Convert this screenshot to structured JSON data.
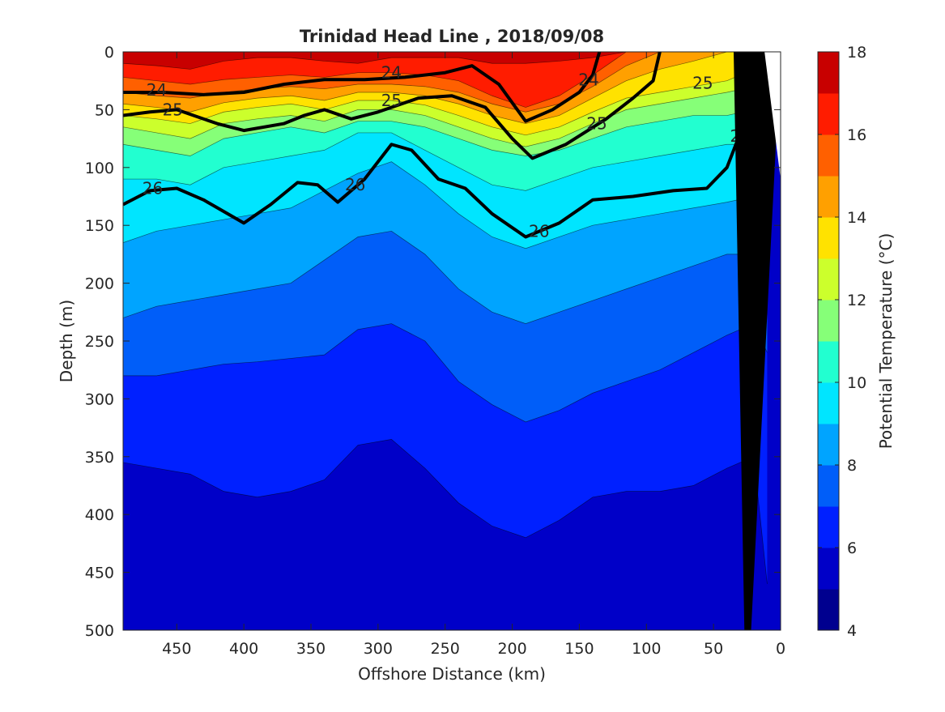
{
  "chart_data": {
    "type": "heatmap",
    "subtype": "filled-contour section",
    "title": "Trinidad Head Line , 2018/09/08",
    "xlabel": "Offshore Distance (km)",
    "ylabel": "Depth (m)",
    "colorbar_label": "Potential Temperature (°C)",
    "x_reversed": true,
    "y_reversed": true,
    "xlim": [
      0,
      490
    ],
    "ylim": [
      0,
      500
    ],
    "xticks": [
      450,
      400,
      350,
      300,
      250,
      200,
      150,
      100,
      50,
      0
    ],
    "yticks": [
      0,
      50,
      100,
      150,
      200,
      250,
      300,
      350,
      400,
      450,
      500
    ],
    "colorbar": {
      "min": 4,
      "max": 18,
      "step": 1,
      "ticks": [
        4,
        6,
        8,
        10,
        12,
        14,
        16,
        18
      ],
      "colors": [
        "#00008f",
        "#0000c8",
        "#0020ff",
        "#005ef9",
        "#00a4ff",
        "#00e5ff",
        "#22ffd0",
        "#86ff78",
        "#ccff2c",
        "#ffe200",
        "#ffa000",
        "#ff6000",
        "#ff1c00",
        "#c80000"
      ]
    },
    "temperature_layers": [
      {
        "t": 6,
        "depth": [
          355,
          360,
          365,
          380,
          385,
          380,
          370,
          340,
          335,
          360,
          390,
          410,
          420,
          405,
          385,
          380,
          380,
          375,
          360,
          350,
          460
        ]
      },
      {
        "t": 7,
        "depth": [
          280,
          280,
          275,
          270,
          268,
          265,
          262,
          240,
          235,
          250,
          285,
          305,
          320,
          310,
          295,
          285,
          275,
          260,
          245,
          235,
          260
        ]
      },
      {
        "t": 8,
        "depth": [
          230,
          220,
          215,
          210,
          205,
          200,
          180,
          160,
          155,
          175,
          205,
          225,
          235,
          225,
          215,
          205,
          195,
          185,
          175,
          175,
          200
        ]
      },
      {
        "t": 9,
        "depth": [
          165,
          155,
          150,
          145,
          140,
          135,
          120,
          105,
          95,
          115,
          140,
          160,
          170,
          160,
          150,
          145,
          140,
          135,
          130,
          125,
          95
        ]
      },
      {
        "t": 10,
        "depth": [
          110,
          110,
          115,
          100,
          95,
          90,
          85,
          70,
          70,
          85,
          100,
          115,
          120,
          110,
          100,
          95,
          90,
          85,
          80,
          80,
          60
        ]
      },
      {
        "t": 11,
        "depth": [
          80,
          85,
          90,
          75,
          70,
          65,
          70,
          60,
          60,
          65,
          75,
          85,
          90,
          85,
          75,
          65,
          60,
          55,
          55,
          50,
          40
        ]
      },
      {
        "t": 12,
        "depth": [
          65,
          70,
          75,
          62,
          58,
          55,
          60,
          50,
          50,
          55,
          65,
          75,
          82,
          75,
          62,
          50,
          45,
          40,
          35,
          30,
          20
        ]
      },
      {
        "t": 13,
        "depth": [
          55,
          58,
          62,
          52,
          48,
          45,
          50,
          42,
          42,
          46,
          55,
          65,
          72,
          65,
          52,
          40,
          35,
          30,
          25,
          15,
          0
        ]
      },
      {
        "t": 14,
        "depth": [
          45,
          48,
          52,
          44,
          40,
          38,
          42,
          35,
          35,
          38,
          45,
          55,
          62,
          55,
          40,
          25,
          15,
          8,
          0,
          0,
          0
        ]
      },
      {
        "t": 15,
        "depth": [
          35,
          38,
          40,
          35,
          32,
          30,
          32,
          28,
          28,
          30,
          35,
          45,
          52,
          45,
          30,
          12,
          0,
          0,
          0,
          0,
          0
        ]
      },
      {
        "t": 16,
        "depth": [
          22,
          25,
          28,
          24,
          22,
          20,
          22,
          18,
          18,
          20,
          25,
          38,
          48,
          38,
          20,
          0,
          0,
          0,
          0,
          0,
          0
        ]
      },
      {
        "t": 17,
        "depth": [
          10,
          12,
          15,
          8,
          5,
          5,
          8,
          10,
          5,
          5,
          5,
          10,
          10,
          8,
          5,
          0,
          0,
          0,
          0,
          0,
          0
        ]
      }
    ],
    "layer_x_km": [
      490,
      465,
      440,
      415,
      390,
      365,
      340,
      315,
      290,
      265,
      240,
      215,
      190,
      165,
      140,
      115,
      90,
      65,
      40,
      20,
      10
    ],
    "density_contours": [
      {
        "label": "24",
        "x": [
          490,
          460,
          430,
          400,
          370,
          340,
          310,
          280,
          250,
          230,
          210,
          190,
          170,
          150,
          140,
          135
        ],
        "depth": [
          35,
          35,
          37,
          35,
          28,
          24,
          24,
          22,
          18,
          12,
          28,
          60,
          50,
          35,
          20,
          0
        ]
      },
      {
        "label": "25",
        "x": [
          490,
          470,
          450,
          420,
          400,
          370,
          355,
          340,
          320,
          300,
          270,
          245,
          220,
          200,
          185,
          160,
          130,
          110,
          95,
          90
        ],
        "depth": [
          55,
          52,
          50,
          62,
          68,
          62,
          55,
          50,
          58,
          52,
          40,
          38,
          48,
          75,
          92,
          80,
          58,
          40,
          25,
          0
        ]
      },
      {
        "label": "26",
        "x": [
          490,
          470,
          450,
          430,
          400,
          380,
          360,
          345,
          330,
          310,
          290,
          275,
          255,
          235,
          215,
          190,
          165,
          140,
          110,
          80,
          55,
          40,
          30,
          22,
          15
        ],
        "depth": [
          132,
          120,
          118,
          128,
          148,
          132,
          113,
          115,
          130,
          110,
          80,
          85,
          110,
          118,
          140,
          160,
          148,
          128,
          125,
          120,
          118,
          100,
          70,
          40,
          22
        ]
      }
    ],
    "contour_labels": [
      {
        "text": "24",
        "x": 465,
        "depth": 33
      },
      {
        "text": "24",
        "x": 290,
        "depth": 18
      },
      {
        "text": "24",
        "x": 143,
        "depth": 24
      },
      {
        "text": "25",
        "x": 453,
        "depth": 50
      },
      {
        "text": "25",
        "x": 290,
        "depth": 42
      },
      {
        "text": "25",
        "x": 137,
        "depth": 62
      },
      {
        "text": "25",
        "x": 58,
        "depth": 27
      },
      {
        "text": "26",
        "x": 468,
        "depth": 118
      },
      {
        "text": "26",
        "x": 317,
        "depth": 115
      },
      {
        "text": "26",
        "x": 180,
        "depth": 155
      },
      {
        "text": "26",
        "x": 30,
        "depth": 73
      }
    ],
    "bathymetry": {
      "x": [
        0,
        22,
        27,
        35
      ],
      "depth": [
        0,
        500,
        500,
        0
      ]
    }
  }
}
